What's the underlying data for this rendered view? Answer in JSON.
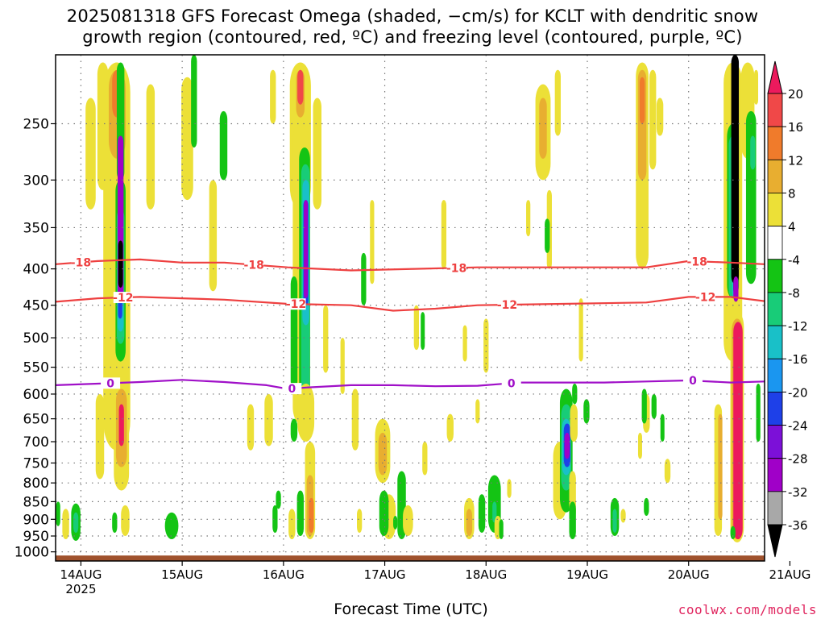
{
  "title_line1": "2025081318 GFS Forecast Omega (shaded, −cm/s) for KCLT with dendritic snow",
  "title_line2": "growth region (contoured, red, ºC) and freezing level (contoured, purple, ºC)",
  "xlabel": "Forecast Time (UTC)",
  "credit": "coolwx.com/models",
  "chart_data": {
    "type": "heatmap",
    "y_axis": {
      "ticks": [
        250,
        300,
        350,
        400,
        450,
        500,
        550,
        600,
        650,
        700,
        750,
        800,
        850,
        900,
        950,
        1000
      ],
      "range": [
        1030,
        200
      ],
      "units": "hPa"
    },
    "x_axis": {
      "range_hours": [
        0,
        168
      ],
      "ticks": [
        {
          "label": "14AUG",
          "sub": "2025",
          "hour": 6
        },
        {
          "label": "15AUG",
          "sub": "",
          "hour": 30
        },
        {
          "label": "16AUG",
          "sub": "",
          "hour": 54
        },
        {
          "label": "17AUG",
          "sub": "",
          "hour": 78
        },
        {
          "label": "18AUG",
          "sub": "",
          "hour": 102
        },
        {
          "label": "19AUG",
          "sub": "",
          "hour": 126
        },
        {
          "label": "20AUG",
          "sub": "",
          "hour": 150
        },
        {
          "label": "21AUG",
          "sub": "",
          "hour": 174
        }
      ]
    },
    "colorbar": {
      "labels": [
        "20",
        "16",
        "12",
        "8",
        "4",
        "-4",
        "-8",
        "-12",
        "-16",
        "-20",
        "-24",
        "-28",
        "-32",
        "-36"
      ],
      "colors": [
        "#ec1a5d",
        "#f04848",
        "#f07b2b",
        "#e8ae30",
        "#ece037",
        "#ffffff",
        "#14c414",
        "#18cc78",
        "#19c0c8",
        "#1a96f0",
        "#1e40e8",
        "#7c10d8",
        "#a000c8",
        "#a8a8a8",
        "#000000"
      ]
    },
    "contours": [
      {
        "label": "-18",
        "color": "#ee4040",
        "points": [
          [
            0,
            394
          ],
          [
            10,
            390
          ],
          [
            20,
            388
          ],
          [
            30,
            392
          ],
          [
            40,
            392
          ],
          [
            55,
            398
          ],
          [
            70,
            402
          ],
          [
            85,
            400
          ],
          [
            100,
            398
          ],
          [
            120,
            398
          ],
          [
            140,
            398
          ],
          [
            150,
            390
          ],
          [
            160,
            392
          ],
          [
            168,
            394
          ]
        ],
        "label_hours": [
          6,
          47,
          95,
          152
        ]
      },
      {
        "label": "-12",
        "color": "#ee4040",
        "points": [
          [
            0,
            445
          ],
          [
            10,
            440
          ],
          [
            20,
            438
          ],
          [
            30,
            440
          ],
          [
            40,
            442
          ],
          [
            55,
            448
          ],
          [
            70,
            450
          ],
          [
            80,
            458
          ],
          [
            90,
            455
          ],
          [
            100,
            450
          ],
          [
            120,
            448
          ],
          [
            140,
            446
          ],
          [
            150,
            438
          ],
          [
            160,
            438
          ],
          [
            168,
            444
          ]
        ],
        "label_hours": [
          16,
          57,
          107,
          154
        ]
      },
      {
        "label": "0",
        "color": "#a010c8",
        "points": [
          [
            0,
            583
          ],
          [
            10,
            580
          ],
          [
            20,
            577
          ],
          [
            30,
            573
          ],
          [
            40,
            577
          ],
          [
            50,
            583
          ],
          [
            55,
            590
          ],
          [
            60,
            587
          ],
          [
            70,
            583
          ],
          [
            80,
            583
          ],
          [
            90,
            585
          ],
          [
            100,
            584
          ],
          [
            110,
            578
          ],
          [
            120,
            578
          ],
          [
            130,
            578
          ],
          [
            140,
            576
          ],
          [
            150,
            574
          ],
          [
            160,
            578
          ],
          [
            168,
            576
          ]
        ],
        "label_hours": [
          13,
          56,
          108,
          151
        ]
      }
    ],
    "ground_pressure": 1012
  }
}
